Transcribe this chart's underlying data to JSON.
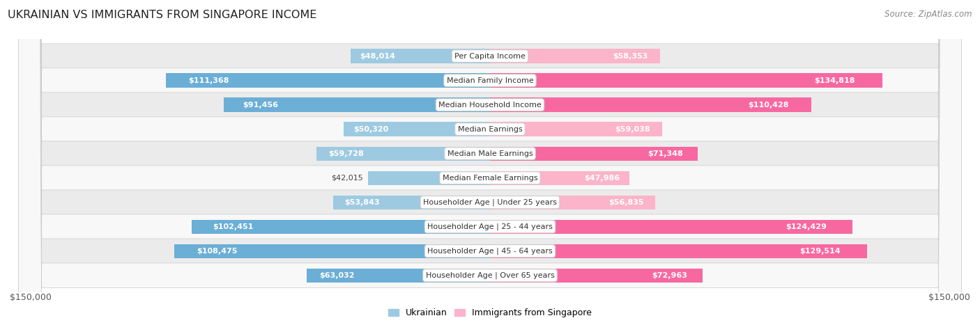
{
  "title": "UKRAINIAN VS IMMIGRANTS FROM SINGAPORE INCOME",
  "source": "Source: ZipAtlas.com",
  "categories": [
    "Per Capita Income",
    "Median Family Income",
    "Median Household Income",
    "Median Earnings",
    "Median Male Earnings",
    "Median Female Earnings",
    "Householder Age | Under 25 years",
    "Householder Age | 25 - 44 years",
    "Householder Age | 45 - 64 years",
    "Householder Age | Over 65 years"
  ],
  "ukrainian_values": [
    48014,
    111368,
    91456,
    50320,
    59728,
    42015,
    53843,
    102451,
    108475,
    63032
  ],
  "singapore_values": [
    58353,
    134818,
    110428,
    59038,
    71348,
    47986,
    56835,
    124429,
    129514,
    72963
  ],
  "ukrainian_labels": [
    "$48,014",
    "$111,368",
    "$91,456",
    "$50,320",
    "$59,728",
    "$42,015",
    "$53,843",
    "$102,451",
    "$108,475",
    "$63,032"
  ],
  "singapore_labels": [
    "$58,353",
    "$134,818",
    "$110,428",
    "$59,038",
    "$71,348",
    "$47,986",
    "$56,835",
    "$124,429",
    "$129,514",
    "$72,963"
  ],
  "ukrainian_color_dark": "#6baed6",
  "ukrainian_color_light": "#9ecae1",
  "singapore_color_dark": "#f768a1",
  "singapore_color_light": "#fbb4ca",
  "max_value": 150000,
  "bar_height": 0.58,
  "legend_ukrainian": "Ukrainian",
  "legend_singapore": "Immigrants from Singapore",
  "xlabel_left": "$150,000",
  "xlabel_right": "$150,000",
  "ukr_inside_threshold": 60000,
  "sin_inside_threshold": 60000
}
